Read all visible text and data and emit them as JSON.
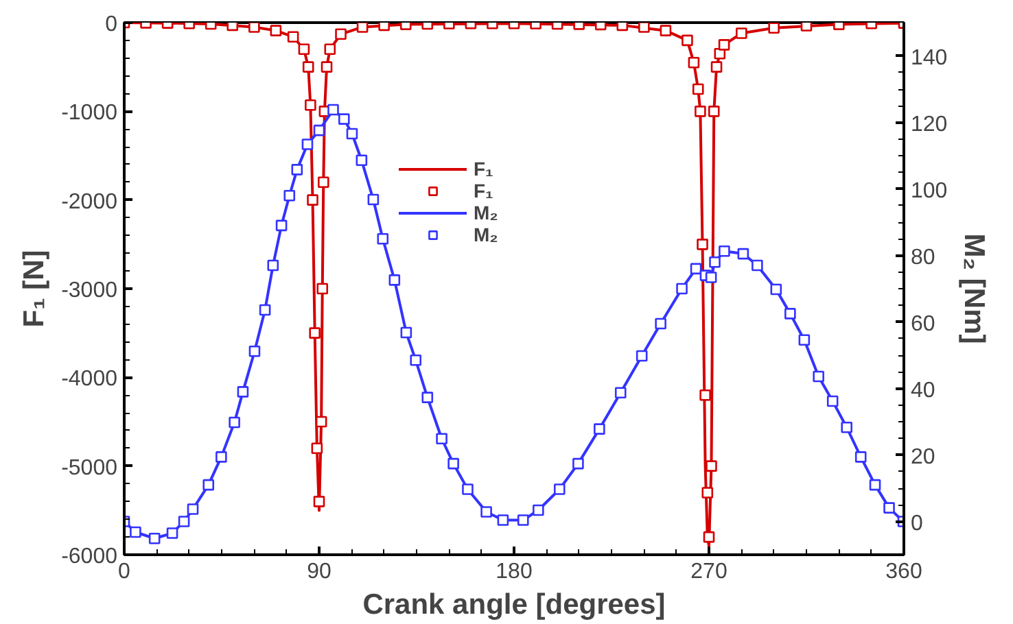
{
  "chart_data": {
    "type": "line",
    "xlabel": "Crank angle [degrees]",
    "ylabel": "F₁ [N]",
    "y2label": "M₂ [Nm]",
    "xlim": [
      0,
      360
    ],
    "xticks": [
      0,
      90,
      180,
      270,
      360
    ],
    "ylim": [
      -6000,
      0
    ],
    "yticks": [
      -6000,
      -5000,
      -4000,
      -3000,
      -2000,
      -1000,
      0
    ],
    "y2lim": [
      -10,
      150
    ],
    "y2ticks": [
      0,
      20,
      40,
      60,
      80,
      100,
      120,
      140
    ],
    "grid": false,
    "legend": "top",
    "series": [
      {
        "name": "F₁",
        "marker": "none",
        "color": "#d40000",
        "x": [
          0,
          20,
          40,
          60,
          70,
          78,
          83,
          85,
          86,
          87,
          88,
          89,
          90,
          91,
          91.5,
          92,
          92.5,
          93.5,
          95,
          100,
          110,
          130,
          180,
          230,
          250,
          260,
          263,
          265,
          266,
          267,
          268.3,
          269.3,
          270,
          271.1,
          272.3,
          273.5,
          275,
          277,
          285,
          300,
          330,
          360
        ],
        "values": [
          0,
          -5,
          -15,
          -50,
          -90,
          -160,
          -300,
          -500,
          -930,
          -2000,
          -3500,
          -4800,
          -5500,
          -4500,
          -3000,
          -1800,
          -1000,
          -500,
          -300,
          -130,
          -50,
          -20,
          -10,
          -30,
          -90,
          -200,
          -450,
          -750,
          -1000,
          -2500,
          -5000,
          -5800,
          -5900,
          -5000,
          -1000,
          -500,
          -350,
          -250,
          -120,
          -60,
          -20,
          -5
        ]
      },
      {
        "name": "F₁",
        "type": "scatter",
        "marker": "square",
        "color": "#d40000",
        "x": [
          0,
          10,
          20,
          30,
          40,
          50,
          60,
          70,
          78,
          83,
          85,
          86,
          87,
          88,
          89,
          90,
          91,
          91.5,
          92,
          92.5,
          93.5,
          95,
          100,
          110,
          120,
          130,
          140,
          150,
          160,
          170,
          180,
          190,
          200,
          210,
          220,
          230,
          240,
          250,
          260,
          263,
          265,
          266,
          267,
          268.3,
          269.3,
          270,
          271.1,
          272.3,
          273.5,
          275,
          277,
          285,
          300,
          315,
          330,
          345,
          360
        ],
        "values": [
          0,
          -3,
          -5,
          -10,
          -15,
          -30,
          -50,
          -90,
          -160,
          -300,
          -500,
          -930,
          -2000,
          -3500,
          -4800,
          -5400,
          -4500,
          -3000,
          -1800,
          -1000,
          -500,
          -300,
          -130,
          -50,
          -30,
          -20,
          -15,
          -12,
          -10,
          -10,
          -10,
          -12,
          -15,
          -18,
          -22,
          -30,
          -50,
          -90,
          -200,
          -450,
          -750,
          -1000,
          -2500,
          -4200,
          -5300,
          -5800,
          -5000,
          -1000,
          -500,
          -350,
          -250,
          -120,
          -60,
          -35,
          -20,
          -10,
          -5
        ]
      },
      {
        "name": "M₂",
        "marker": "none",
        "axis": "y2",
        "color": "#3333ff",
        "x": [
          0,
          5.2,
          14,
          22.2,
          27.6,
          31.7,
          38.9,
          44.8,
          50.9,
          54.8,
          60.2,
          65,
          68.7,
          72.6,
          76.3,
          79.8,
          84.6,
          90,
          96.5,
          101.5,
          105.2,
          109.6,
          115,
          119.4,
          124.8,
          130.2,
          134.6,
          140,
          146.6,
          152,
          158.6,
          167.2,
          174.9,
          184.2,
          191.2,
          201,
          209.6,
          219.4,
          229.2,
          239,
          247.7,
          257.5,
          264,
          268.4,
          271,
          272.7,
          277.1,
          285.8,
          292.3,
          301,
          307.5,
          314,
          320.6,
          327.1,
          333.6,
          340.1,
          346.7,
          353.2,
          359.7
        ],
        "values": [
          0,
          -3.2,
          -5.1,
          -3.5,
          0,
          3.7,
          11,
          19.4,
          29.8,
          39,
          51.2,
          63.6,
          77,
          89,
          98,
          105.8,
          113.4,
          117.6,
          123.8,
          121,
          116.6,
          108.6,
          96.8,
          85,
          72.6,
          56.8,
          48.5,
          37.3,
          24.9,
          17.4,
          9.7,
          2.9,
          0.4,
          0.4,
          3.4,
          9.7,
          17.4,
          27.8,
          38.7,
          49.8,
          59.5,
          70,
          76,
          74,
          73.4,
          78,
          81.3,
          80.5,
          77,
          69.8,
          62.5,
          54.6,
          43.6,
          36.2,
          28.3,
          19.4,
          11,
          4.1,
          0
        ]
      },
      {
        "name": "M₂",
        "type": "scatter",
        "marker": "square",
        "color": "#3333ff",
        "x": [
          0,
          5.2,
          14,
          22.2,
          27.6,
          31.7,
          38.9,
          44.8,
          50.9,
          54.8,
          60.2,
          65,
          68.7,
          72.6,
          76.3,
          79.8,
          84.6,
          90,
          96.5,
          101.5,
          105.2,
          109.6,
          115,
          119.4,
          124.8,
          130.2,
          134.6,
          140,
          146.6,
          152,
          158.6,
          167.2,
          174.9,
          184.2,
          191.2,
          201,
          209.6,
          219.4,
          229.2,
          239,
          247.7,
          257.5,
          264,
          268.4,
          271,
          272.7,
          277.1,
          285.8,
          292.3,
          301,
          307.5,
          314,
          320.6,
          327.1,
          333.6,
          340.1,
          346.7,
          353.2,
          359.7
        ],
        "values": [
          0,
          -3.2,
          -5.1,
          -3.5,
          0,
          3.7,
          11,
          19.4,
          29.8,
          39,
          51.2,
          63.6,
          77,
          89,
          98,
          105.8,
          113.4,
          117.6,
          123.8,
          121,
          116.6,
          108.6,
          96.8,
          85,
          72.6,
          56.8,
          48.5,
          37.3,
          24.9,
          17.4,
          9.7,
          2.9,
          0.4,
          0.4,
          3.4,
          9.7,
          17.4,
          27.8,
          38.7,
          49.8,
          59.5,
          70,
          76,
          74,
          73.4,
          78,
          81.3,
          80.5,
          77,
          69.8,
          62.5,
          54.6,
          43.6,
          36.2,
          28.3,
          19.4,
          11,
          4.1,
          0
        ],
        "axis": "y2"
      }
    ]
  }
}
